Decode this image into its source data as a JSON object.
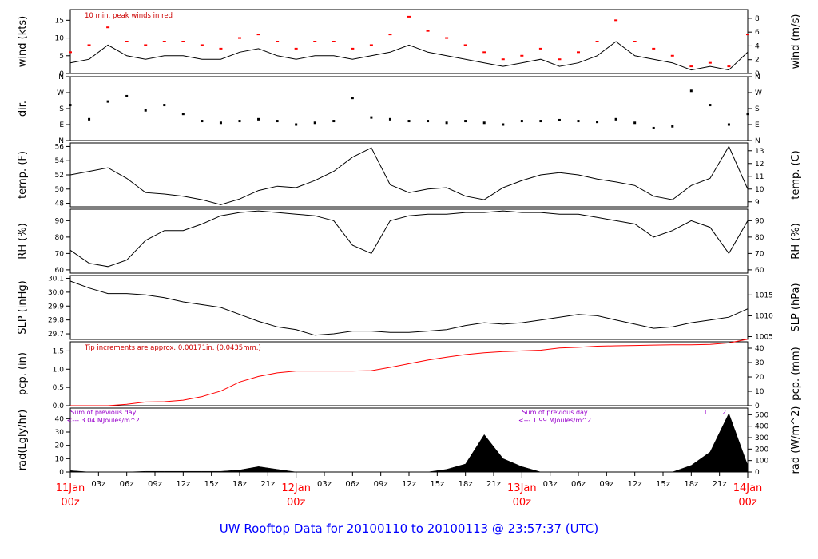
{
  "title": "UW Rooftop Data for 20100110  to  20100113 @ 23:57:37  (UTC)",
  "colors": {
    "trace": "#000000",
    "gust": "#ff0000",
    "precip": "#ff0000",
    "day_label": "#ff0000",
    "note_red": "#cc0000",
    "note_purple": "#9900cc",
    "title": "#0000ff",
    "axis": "#000000"
  },
  "x_axis": {
    "hour_ticks": [
      "03z",
      "06z",
      "09z",
      "12z",
      "15z",
      "18z",
      "21z"
    ],
    "days": [
      {
        "day": "11Jan",
        "hour": "00z"
      },
      {
        "day": "12Jan",
        "hour": "00z"
      },
      {
        "day": "13Jan",
        "hour": "00z"
      },
      {
        "day": "14Jan",
        "hour": "00z"
      }
    ]
  },
  "chart_data": [
    {
      "id": "wind",
      "type": "line",
      "ylabel": "wind (kts)",
      "ylabel_right": "wind (m/s)",
      "ylim": [
        0,
        18
      ],
      "yticks": [
        0,
        5,
        10,
        15
      ],
      "right_ticks": [
        "0",
        "2",
        "4",
        "6",
        "8"
      ],
      "right_tick_values": [
        0,
        3.89,
        7.78,
        11.66,
        15.55
      ],
      "annotation": "10 min. peak winds in red",
      "x_hours": [
        0,
        2,
        4,
        6,
        8,
        10,
        12,
        14,
        16,
        18,
        20,
        22,
        24,
        26,
        28,
        30,
        32,
        34,
        36,
        38,
        40,
        42,
        44,
        46,
        48,
        50,
        52,
        54,
        56,
        58,
        60,
        62,
        64,
        66,
        68,
        70,
        72
      ],
      "values": [
        3,
        4,
        8,
        5,
        4,
        5,
        5,
        4,
        4,
        6,
        7,
        5,
        4,
        5,
        5,
        4,
        5,
        6,
        8,
        6,
        5,
        4,
        3,
        2,
        3,
        4,
        2,
        3,
        5,
        9,
        5,
        4,
        3,
        1,
        2,
        1,
        6
      ],
      "gusts": [
        6,
        8,
        13,
        9,
        8,
        9,
        9,
        8,
        7,
        10,
        11,
        9,
        7,
        9,
        9,
        7,
        8,
        11,
        16,
        12,
        10,
        8,
        6,
        4,
        5,
        7,
        4,
        6,
        9,
        15,
        9,
        7,
        5,
        2,
        3,
        2,
        11
      ]
    },
    {
      "id": "dir",
      "type": "scatter",
      "ylabel": "dir.",
      "ylim": [
        0,
        360
      ],
      "tick_labels": [
        "N",
        "E",
        "S",
        "W",
        "N"
      ],
      "tick_values": [
        0,
        90,
        180,
        270,
        360
      ],
      "x_hours": [
        0,
        2,
        4,
        6,
        8,
        10,
        12,
        14,
        16,
        18,
        20,
        22,
        24,
        26,
        28,
        30,
        32,
        34,
        36,
        38,
        40,
        42,
        44,
        46,
        48,
        50,
        52,
        54,
        56,
        58,
        60,
        62,
        64,
        66,
        68,
        70,
        72
      ],
      "values": [
        200,
        120,
        220,
        250,
        170,
        200,
        150,
        110,
        100,
        110,
        120,
        110,
        90,
        100,
        110,
        240,
        130,
        120,
        110,
        110,
        100,
        110,
        100,
        90,
        110,
        110,
        115,
        110,
        105,
        120,
        100,
        70,
        80,
        280,
        200,
        90,
        150
      ]
    },
    {
      "id": "temp",
      "type": "line",
      "ylabel": "temp. (F)",
      "ylabel_right": "temp. (C)",
      "ylim": [
        47.5,
        56.5
      ],
      "yticks": [
        48,
        50,
        52,
        54,
        56
      ],
      "right_ticks": [
        "9",
        "10",
        "11",
        "12",
        "13"
      ],
      "right_tick_values": [
        48.2,
        50.0,
        51.8,
        53.6,
        55.4
      ],
      "x_hours": [
        0,
        2,
        4,
        6,
        8,
        10,
        12,
        14,
        16,
        18,
        20,
        22,
        24,
        26,
        28,
        30,
        32,
        34,
        36,
        38,
        40,
        42,
        44,
        46,
        48,
        50,
        52,
        54,
        56,
        58,
        60,
        62,
        64,
        66,
        68,
        70,
        72
      ],
      "values": [
        52.0,
        52.5,
        53.0,
        51.5,
        49.5,
        49.3,
        49.0,
        48.5,
        47.8,
        48.6,
        49.8,
        50.4,
        50.2,
        51.2,
        52.5,
        54.5,
        55.8,
        50.6,
        49.5,
        50.0,
        50.2,
        49.0,
        48.5,
        50.2,
        51.2,
        52.0,
        52.3,
        52.0,
        51.4,
        51.0,
        50.5,
        49.0,
        48.5,
        50.5,
        51.5,
        56.0,
        50.0
      ]
    },
    {
      "id": "rh",
      "type": "line",
      "ylabel": "RH (%)",
      "ylabel_right": "RH (%)",
      "ylim": [
        58,
        97
      ],
      "yticks": [
        60,
        70,
        80,
        90
      ],
      "right_ticks": [
        "60",
        "70",
        "80",
        "90"
      ],
      "right_tick_values": [
        60,
        70,
        80,
        90
      ],
      "x_hours": [
        0,
        2,
        4,
        6,
        8,
        10,
        12,
        14,
        16,
        18,
        20,
        22,
        24,
        26,
        28,
        30,
        32,
        34,
        36,
        38,
        40,
        42,
        44,
        46,
        48,
        50,
        52,
        54,
        56,
        58,
        60,
        62,
        64,
        66,
        68,
        70,
        72
      ],
      "values": [
        72,
        64,
        62,
        66,
        78,
        84,
        84,
        88,
        93,
        95,
        96,
        95,
        94,
        93,
        90,
        75,
        70,
        90,
        93,
        94,
        94,
        95,
        95,
        96,
        95,
        95,
        94,
        94,
        92,
        90,
        88,
        80,
        84,
        90,
        86,
        70,
        90
      ]
    },
    {
      "id": "slp",
      "type": "line",
      "ylabel": "SLP (inHg)",
      "ylabel_right": "SLP (hPa)",
      "ylim": [
        29.66,
        30.12
      ],
      "yticks": [
        29.7,
        29.8,
        29.9,
        30.0,
        30.1
      ],
      "ytick_labels": [
        "29.7",
        "29.8",
        "29.9",
        "30.0",
        "30.1"
      ],
      "right_ticks": [
        "1005",
        "1010",
        "1015"
      ],
      "right_tick_values": [
        29.68,
        29.83,
        29.98
      ],
      "x_hours": [
        0,
        2,
        4,
        6,
        8,
        10,
        12,
        14,
        16,
        18,
        20,
        22,
        24,
        26,
        28,
        30,
        32,
        34,
        36,
        38,
        40,
        42,
        44,
        46,
        48,
        50,
        52,
        54,
        56,
        58,
        60,
        62,
        64,
        66,
        68,
        70,
        72
      ],
      "values": [
        30.08,
        30.03,
        29.99,
        29.99,
        29.98,
        29.96,
        29.93,
        29.91,
        29.89,
        29.84,
        29.79,
        29.75,
        29.73,
        29.69,
        29.7,
        29.72,
        29.72,
        29.71,
        29.71,
        29.72,
        29.73,
        29.76,
        29.78,
        29.77,
        29.78,
        29.8,
        29.82,
        29.84,
        29.83,
        29.8,
        29.77,
        29.74,
        29.75,
        29.78,
        29.8,
        29.82,
        29.88
      ]
    },
    {
      "id": "pcp",
      "type": "line",
      "ylabel": "pcp. (in)",
      "ylabel_right": "pcp. (mm)",
      "ylim": [
        0,
        1.75
      ],
      "yticks": [
        0.0,
        0.5,
        1.0,
        1.5
      ],
      "ytick_labels": [
        "0.0",
        "0.5",
        "1.0",
        "1.5"
      ],
      "right_ticks": [
        "0",
        "10",
        "20",
        "30",
        "40"
      ],
      "right_tick_values": [
        0,
        0.394,
        0.787,
        1.181,
        1.575
      ],
      "annotation": "Tip increments are approx. 0.00171in. (0.0435mm.)",
      "x_hours": [
        0,
        2,
        4,
        6,
        8,
        10,
        12,
        14,
        16,
        18,
        20,
        22,
        24,
        26,
        28,
        30,
        32,
        34,
        36,
        38,
        40,
        42,
        44,
        46,
        48,
        50,
        52,
        54,
        56,
        58,
        60,
        62,
        64,
        66,
        68,
        70,
        72
      ],
      "values": [
        0,
        0,
        0,
        0.04,
        0.1,
        0.11,
        0.15,
        0.25,
        0.4,
        0.65,
        0.8,
        0.9,
        0.95,
        0.95,
        0.95,
        0.95,
        0.96,
        1.05,
        1.15,
        1.25,
        1.33,
        1.4,
        1.45,
        1.48,
        1.5,
        1.52,
        1.58,
        1.6,
        1.63,
        1.64,
        1.65,
        1.66,
        1.67,
        1.67,
        1.68,
        1.72,
        1.82
      ]
    },
    {
      "id": "rad",
      "type": "area",
      "ylabel": "rad(Lgly/hr)",
      "ylabel_right": "rad (W/m^2)",
      "ylim": [
        0,
        48
      ],
      "yticks": [
        0,
        10,
        20,
        30,
        40
      ],
      "right_ticks": [
        "0",
        "100",
        "200",
        "300",
        "400",
        "500"
      ],
      "right_tick_values": [
        0,
        8.6,
        17.2,
        25.8,
        34.4,
        43.0
      ],
      "annotations": [
        {
          "text": "Sum of previous day",
          "day": 0
        },
        {
          "text": "<--- 3.04 MJoules/m^2",
          "day": 0
        },
        {
          "text": "Sum of previous day",
          "day": 2
        },
        {
          "text": "<--- 1.99 MJoules/m^2",
          "day": 2
        }
      ],
      "markers": [
        "1",
        "1",
        "2"
      ],
      "x_hours": [
        0,
        2,
        4,
        6,
        8,
        10,
        12,
        14,
        16,
        18,
        20,
        22,
        24,
        26,
        28,
        30,
        32,
        34,
        36,
        38,
        40,
        42,
        44,
        46,
        48,
        50,
        52,
        54,
        56,
        58,
        60,
        62,
        64,
        66,
        68,
        70,
        72
      ],
      "values": [
        1,
        0,
        0,
        0,
        0.5,
        0.5,
        0.5,
        0.5,
        0.5,
        1.5,
        4,
        2,
        0,
        0,
        0,
        0,
        0,
        0,
        0,
        0,
        2,
        6,
        28,
        10,
        4,
        0,
        0,
        0,
        0,
        0,
        0,
        0,
        0,
        5,
        15,
        44,
        5
      ]
    }
  ]
}
